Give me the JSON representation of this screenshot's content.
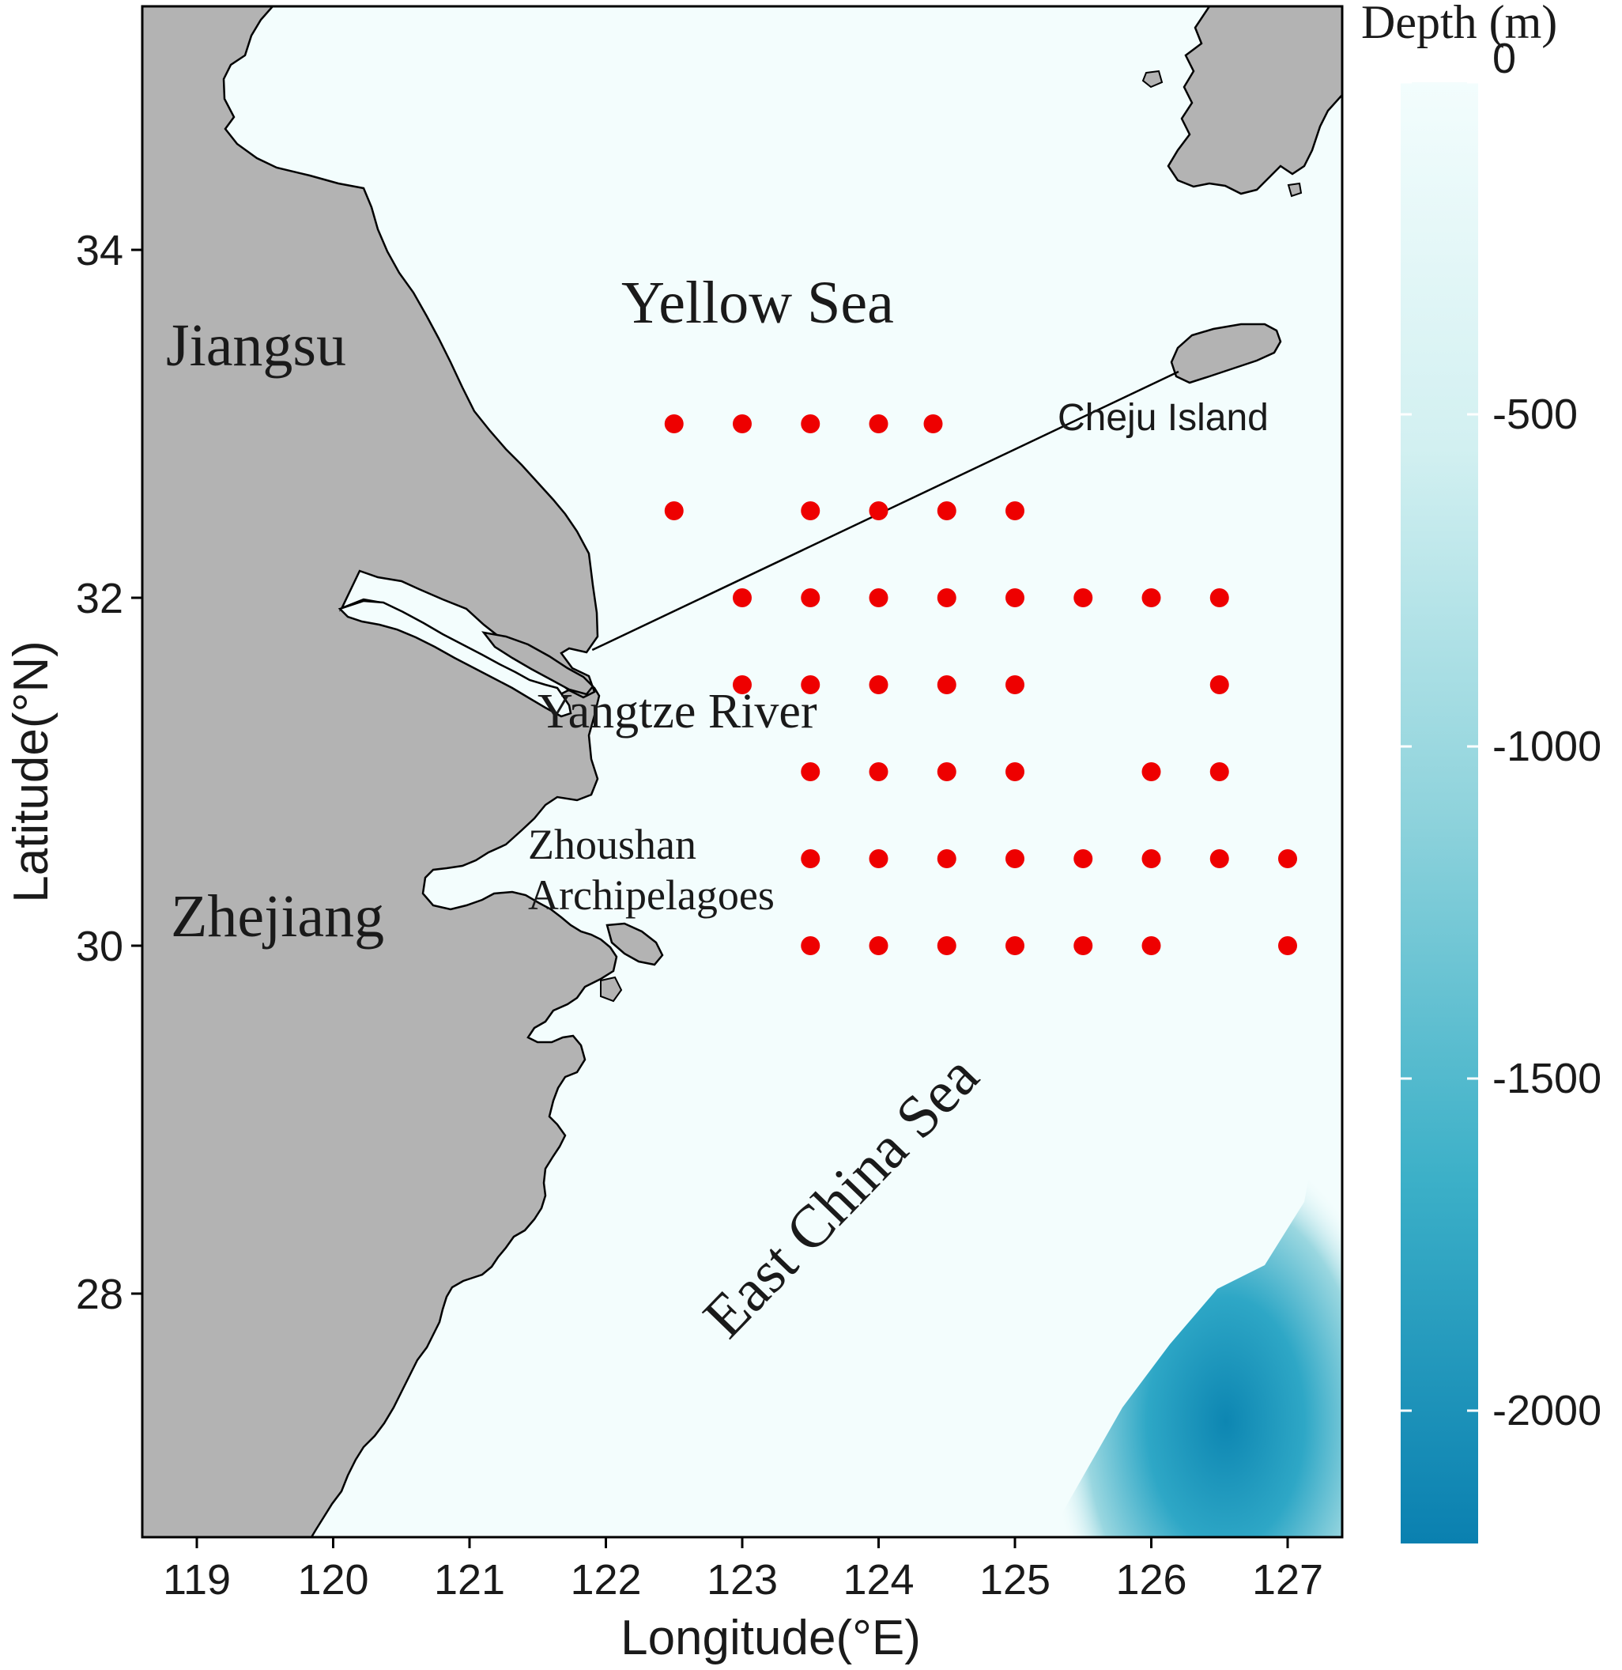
{
  "chart_data": {
    "type": "scatter",
    "map_type": "station map with bathymetry",
    "xlabel": "Longitude(°E)",
    "ylabel": "Latitude(°N)",
    "xlim": [
      118.6,
      127.4
    ],
    "ylim": [
      26.6,
      35.4
    ],
    "x_ticks": [
      119,
      120,
      121,
      122,
      123,
      124,
      125,
      126,
      127
    ],
    "x_tick_labels": [
      "119",
      "120",
      "121",
      "122",
      "123",
      "124",
      "125",
      "126",
      "127"
    ],
    "y_ticks": [
      28,
      30,
      32,
      34
    ],
    "y_tick_labels": [
      "28",
      "30",
      "32",
      "34"
    ],
    "grid": false,
    "colors": {
      "land": "#b3b3b3",
      "shallow_sea": "#f3fdfd",
      "deep_sea": "#0d86b2",
      "station": "#ee0000"
    },
    "stations": [
      {
        "lon": 122.5,
        "lat": 33.0
      },
      {
        "lon": 123.0,
        "lat": 33.0
      },
      {
        "lon": 123.5,
        "lat": 33.0
      },
      {
        "lon": 124.0,
        "lat": 33.0
      },
      {
        "lon": 124.4,
        "lat": 33.0
      },
      {
        "lon": 122.5,
        "lat": 32.5
      },
      {
        "lon": 123.5,
        "lat": 32.5
      },
      {
        "lon": 124.0,
        "lat": 32.5
      },
      {
        "lon": 124.5,
        "lat": 32.5
      },
      {
        "lon": 125.0,
        "lat": 32.5
      },
      {
        "lon": 123.0,
        "lat": 32.0
      },
      {
        "lon": 123.5,
        "lat": 32.0
      },
      {
        "lon": 124.0,
        "lat": 32.0
      },
      {
        "lon": 124.5,
        "lat": 32.0
      },
      {
        "lon": 125.0,
        "lat": 32.0
      },
      {
        "lon": 125.5,
        "lat": 32.0
      },
      {
        "lon": 126.0,
        "lat": 32.0
      },
      {
        "lon": 126.5,
        "lat": 32.0
      },
      {
        "lon": 123.0,
        "lat": 31.5
      },
      {
        "lon": 123.5,
        "lat": 31.5
      },
      {
        "lon": 124.0,
        "lat": 31.5
      },
      {
        "lon": 124.5,
        "lat": 31.5
      },
      {
        "lon": 125.0,
        "lat": 31.5
      },
      {
        "lon": 126.5,
        "lat": 31.5
      },
      {
        "lon": 123.5,
        "lat": 31.0
      },
      {
        "lon": 124.0,
        "lat": 31.0
      },
      {
        "lon": 124.5,
        "lat": 31.0
      },
      {
        "lon": 125.0,
        "lat": 31.0
      },
      {
        "lon": 126.0,
        "lat": 31.0
      },
      {
        "lon": 126.5,
        "lat": 31.0
      },
      {
        "lon": 123.5,
        "lat": 30.5
      },
      {
        "lon": 124.0,
        "lat": 30.5
      },
      {
        "lon": 124.5,
        "lat": 30.5
      },
      {
        "lon": 125.0,
        "lat": 30.5
      },
      {
        "lon": 125.5,
        "lat": 30.5
      },
      {
        "lon": 126.0,
        "lat": 30.5
      },
      {
        "lon": 126.5,
        "lat": 30.5
      },
      {
        "lon": 127.0,
        "lat": 30.5
      },
      {
        "lon": 123.5,
        "lat": 30.0
      },
      {
        "lon": 124.0,
        "lat": 30.0
      },
      {
        "lon": 124.5,
        "lat": 30.0
      },
      {
        "lon": 125.0,
        "lat": 30.0
      },
      {
        "lon": 125.5,
        "lat": 30.0
      },
      {
        "lon": 126.0,
        "lat": 30.0
      },
      {
        "lon": 127.0,
        "lat": 30.0
      }
    ],
    "place_labels": {
      "jiangsu": "Jiangsu",
      "zhejiang": "Zhejiang",
      "yellow_sea": "Yellow Sea",
      "east_china_sea": "East China Sea",
      "yangtze_river": "Yangtze River",
      "zhoushan_line1": "Zhoushan",
      "zhoushan_line2": "Archipelagoes",
      "cheju_island": "Cheju Island"
    },
    "leader_line": {
      "from": {
        "lon": 121.9,
        "lat": 31.7
      },
      "to": {
        "lon": 126.2,
        "lat": 33.3
      }
    },
    "legend": {
      "title": "Depth (m)",
      "placement": "right",
      "range": [
        -2200,
        0
      ],
      "ticks": [
        0,
        -500,
        -1000,
        -1500,
        -2000
      ],
      "tick_labels": [
        "0",
        "-500",
        "-1000",
        "-1500",
        "-2000"
      ]
    }
  }
}
